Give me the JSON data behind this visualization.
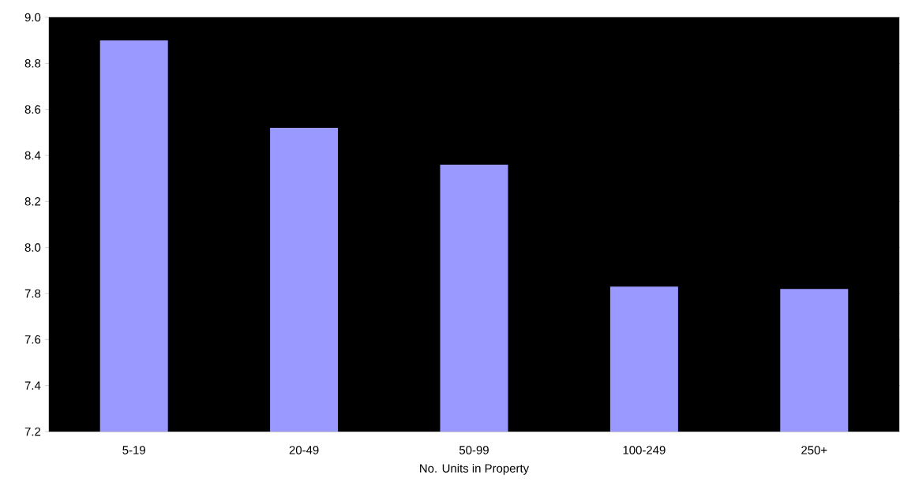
{
  "chart_data": {
    "type": "bar",
    "xlabel": "No. Units in Property",
    "categories": [
      "5-19",
      "20-49",
      "50-99",
      "100-249",
      "250+"
    ],
    "values": [
      8.9,
      8.52,
      8.36,
      7.83,
      7.82
    ],
    "color": "#9999ff",
    "ylim": [
      7.2,
      9.0
    ],
    "yticks": [
      {
        "value": 7.2,
        "label": "7.2"
      },
      {
        "value": 7.4,
        "label": "7.4"
      },
      {
        "value": 7.6,
        "label": "7.6"
      },
      {
        "value": 7.8,
        "label": "7.8"
      },
      {
        "value": 8.0,
        "label": "8.0"
      },
      {
        "value": 8.2,
        "label": "8.2"
      },
      {
        "value": 8.4,
        "label": "8.4"
      },
      {
        "value": 8.6,
        "label": "8.6"
      },
      {
        "value": 8.8,
        "label": "8.8"
      },
      {
        "value": 9.0,
        "label": "9.0"
      }
    ],
    "grid": false
  }
}
